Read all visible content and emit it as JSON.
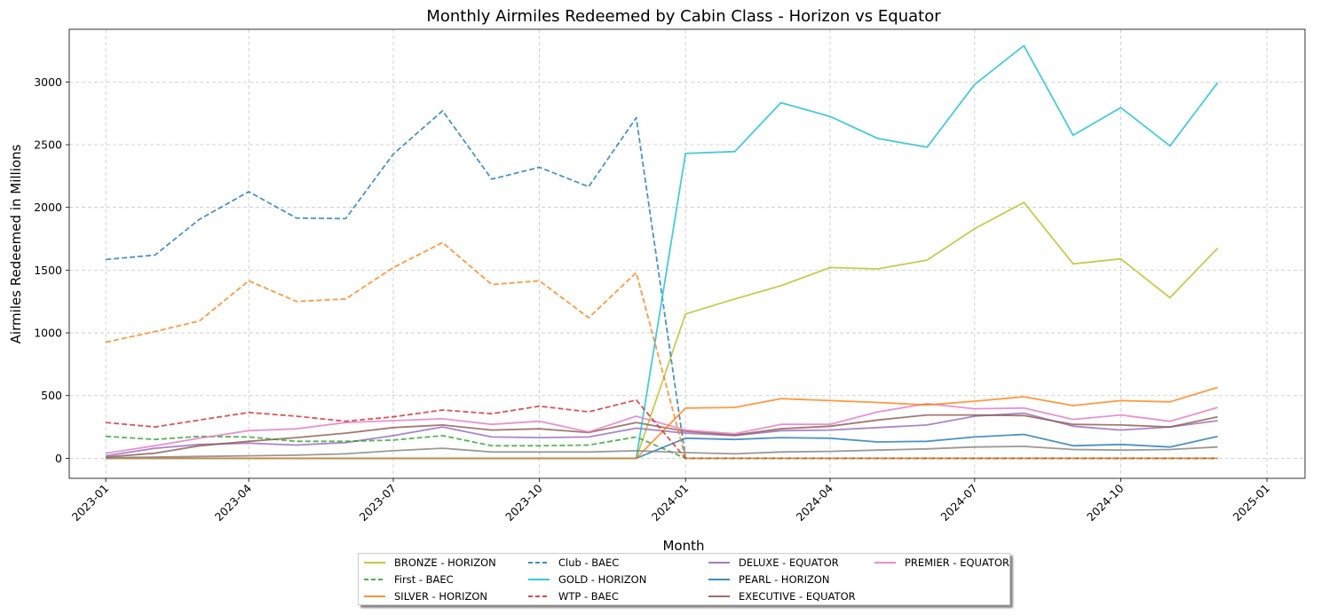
{
  "chart_data": {
    "type": "line",
    "title": "Monthly Airmiles Redeemed by Cabin Class - Horizon vs Equator",
    "xlabel": "Month",
    "ylabel": "Airmiles Redeemed in Millions",
    "x": [
      "2023-01",
      "2023-02",
      "2023-03",
      "2023-04",
      "2023-05",
      "2023-06",
      "2023-07",
      "2023-08",
      "2023-09",
      "2023-10",
      "2023-11",
      "2023-12",
      "2024-01",
      "2024-02",
      "2024-03",
      "2024-04",
      "2024-05",
      "2024-06",
      "2024-07",
      "2024-08",
      "2024-09",
      "2024-10",
      "2024-11",
      "2024-12"
    ],
    "x_ticks": [
      "2023-01",
      "2023-04",
      "2023-07",
      "2023-10",
      "2024-01",
      "2024-04",
      "2024-07",
      "2024-10",
      "2025-01"
    ],
    "y_ticks": [
      0,
      500,
      1000,
      1500,
      2000,
      2500,
      3000
    ],
    "ylim": [
      -160,
      3420
    ],
    "xlim": [
      "2022-12-09",
      "2025-01-25"
    ],
    "grid": true,
    "legend_placement": "bottom-center",
    "series": [
      {
        "name": "BRONZE - HORIZON",
        "color": "#bcbd22",
        "dash": "solid",
        "values": [
          0,
          0,
          0,
          0,
          0,
          0,
          0,
          0,
          0,
          0,
          0,
          0,
          1150,
          1270,
          1375,
          1520,
          1510,
          1580,
          1830,
          2040,
          1550,
          1590,
          1280,
          1675
        ]
      },
      {
        "name": "Club - BAEC",
        "color": "#1f77b4",
        "dash": "dashed",
        "values": [
          1585,
          1620,
          1905,
          2125,
          1915,
          1910,
          2425,
          2770,
          2225,
          2320,
          2165,
          2715,
          0,
          0,
          0,
          0,
          0,
          0,
          0,
          0,
          0,
          0,
          0,
          0
        ]
      },
      {
        "name": "DELUXE - EQUATOR",
        "color": "#9467bd",
        "dash": "solid",
        "values": [
          20,
          80,
          110,
          120,
          105,
          125,
          180,
          250,
          170,
          165,
          170,
          240,
          200,
          180,
          220,
          225,
          245,
          265,
          335,
          360,
          255,
          225,
          250,
          300
        ]
      },
      {
        "name": "EXECUTIVE - EQUATOR",
        "color": "#8c564b",
        "dash": "solid",
        "values": [
          10,
          40,
          100,
          135,
          165,
          200,
          245,
          265,
          225,
          235,
          205,
          285,
          215,
          185,
          235,
          255,
          305,
          345,
          345,
          340,
          270,
          265,
          250,
          330
        ]
      },
      {
        "name": "First - BAEC",
        "color": "#2ca02c",
        "dash": "dashed",
        "values": [
          175,
          150,
          175,
          170,
          135,
          135,
          145,
          180,
          100,
          100,
          105,
          170,
          0,
          0,
          0,
          0,
          0,
          0,
          0,
          0,
          0,
          0,
          0,
          0
        ]
      },
      {
        "name": "GOLD - HORIZON",
        "color": "#17becf",
        "dash": "solid",
        "values": [
          0,
          0,
          0,
          0,
          0,
          0,
          0,
          0,
          0,
          0,
          0,
          0,
          2430,
          2445,
          2835,
          2725,
          2550,
          2480,
          2980,
          3290,
          2575,
          2795,
          2490,
          2995
        ]
      },
      {
        "name": "PEARL - HORIZON",
        "color": "#1f77b4",
        "dash": "solid",
        "values": [
          0,
          0,
          0,
          0,
          0,
          0,
          0,
          0,
          0,
          0,
          0,
          0,
          160,
          150,
          165,
          160,
          130,
          135,
          170,
          190,
          100,
          110,
          90,
          175
        ]
      },
      {
        "name": "PREMIER - EQUATOR",
        "color": "#e377c2",
        "dash": "solid",
        "values": [
          40,
          100,
          160,
          220,
          235,
          285,
          300,
          315,
          270,
          295,
          210,
          335,
          225,
          195,
          270,
          270,
          370,
          435,
          395,
          400,
          310,
          345,
          295,
          405
        ]
      },
      {
        "name": "SILVER - HORIZON",
        "color": "#ff7f0e",
        "dash": "solid",
        "values": [
          0,
          0,
          0,
          0,
          0,
          0,
          0,
          0,
          0,
          0,
          0,
          0,
          400,
          405,
          475,
          460,
          445,
          425,
          455,
          490,
          420,
          460,
          450,
          565
        ]
      },
      {
        "name": "WTP - BAEC",
        "color": "#d62728",
        "dash": "dashed",
        "values": [
          285,
          250,
          305,
          365,
          335,
          295,
          330,
          385,
          355,
          415,
          370,
          465,
          0,
          0,
          0,
          0,
          0,
          0,
          0,
          0,
          0,
          0,
          0,
          0
        ]
      },
      {
        "name": "",
        "color": "#7f7f7f",
        "dash": "solid",
        "values": [
          5,
          10,
          15,
          20,
          25,
          35,
          60,
          80,
          50,
          50,
          50,
          60,
          45,
          35,
          50,
          55,
          65,
          75,
          90,
          95,
          70,
          65,
          70,
          90
        ]
      },
      {
        "name": "",
        "color": "#ff7f0e",
        "dash": "dashed",
        "values": [
          925,
          1010,
          1095,
          1415,
          1250,
          1270,
          1520,
          1720,
          1385,
          1415,
          1120,
          1480,
          0,
          0,
          0,
          0,
          0,
          0,
          0,
          0,
          0,
          0,
          0,
          0
        ]
      }
    ],
    "legend_order": [
      0,
      4,
      8,
      1,
      5,
      9,
      2,
      6,
      3,
      7
    ]
  }
}
